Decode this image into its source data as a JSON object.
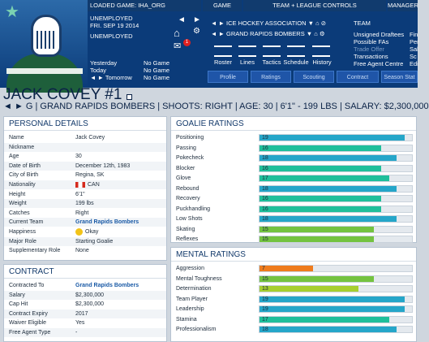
{
  "header": {
    "loaded_game_label": "LOADED GAME:",
    "loaded_game": "IHA_ORG",
    "team_status": "UNEMPLOYED",
    "date": "FRI. SEP 19 2014",
    "status2": "UNEMPLOYED",
    "game_tab": "GAME",
    "team_controls": "TEAM + LEAGUE CONTROLS",
    "manager_tab": "MANAGER",
    "schedule": [
      {
        "label": "Yesterday",
        "value": "No Game"
      },
      {
        "label": "Today",
        "value": "No Game"
      },
      {
        "label": "Tomorrow",
        "value": "No Game"
      }
    ],
    "leagues": [
      "ICE HOCKEY ASSOCIATION",
      "GRAND RAPIDS BOMBERS"
    ],
    "team_menu_title": "TEAM",
    "team_menu": [
      "Unsigned Draftees",
      "Possible FAs",
      "Trade Offer",
      "Transactions",
      "Free Agent Centre"
    ],
    "manager_menu": [
      "Fin",
      "Per",
      "Sal",
      "Sc",
      "Edi"
    ],
    "tools": [
      "Roster",
      "Lines",
      "Tactics",
      "Schedule",
      "History"
    ],
    "tabs": [
      "Profile",
      "Ratings",
      "Scouting",
      "Contract",
      "Season Stat"
    ],
    "notification_count": "1"
  },
  "player": {
    "name": "JACK COVEY #1",
    "summary": "◄ ► G | GRAND RAPIDS BOMBERS | SHOOTS: RIGHT | AGE: 30 | 6'1\" - 199 LBS | SALARY: $2,300,000"
  },
  "personal": {
    "title": "PERSONAL DETAILS",
    "rows": [
      {
        "k": "Name",
        "v": "Jack Covey"
      },
      {
        "k": "Nickname",
        "v": ""
      },
      {
        "k": "Age",
        "v": "30"
      },
      {
        "k": "Date of Birth",
        "v": "December 12th, 1983"
      },
      {
        "k": "City of Birth",
        "v": "Regina, SK"
      },
      {
        "k": "Nationality",
        "v": "CAN"
      },
      {
        "k": "Height",
        "v": "6'1\""
      },
      {
        "k": "Weight",
        "v": "199 lbs"
      },
      {
        "k": "Catches",
        "v": "Right"
      },
      {
        "k": "Current Team",
        "v": "Grand Rapids Bombers"
      },
      {
        "k": "Happiness",
        "v": "Okay"
      },
      {
        "k": "Major Role",
        "v": "Starting Goalie"
      },
      {
        "k": "Supplementary Role",
        "v": "None"
      }
    ]
  },
  "contract": {
    "title": "CONTRACT",
    "rows": [
      {
        "k": "Contracted To",
        "v": "Grand Rapids Bombers"
      },
      {
        "k": "Salary",
        "v": "$2,300,000"
      },
      {
        "k": "Cap Hit",
        "v": "$2,300,000"
      },
      {
        "k": "Contract Expiry",
        "v": "2017"
      },
      {
        "k": "Waiver Eligible",
        "v": "Yes"
      },
      {
        "k": "Free Agent Type",
        "v": "-"
      }
    ]
  },
  "goalie": {
    "title": "GOALIE RATINGS",
    "rows": [
      {
        "k": "Positioning",
        "v": 19,
        "c": "#25a6c9"
      },
      {
        "k": "Passing",
        "v": 16,
        "c": "#1fbf9b"
      },
      {
        "k": "Pokecheck",
        "v": 18,
        "c": "#25a6c9"
      },
      {
        "k": "Blocker",
        "v": 16,
        "c": "#1fbf9b"
      },
      {
        "k": "Glove",
        "v": 17,
        "c": "#1fbf9b"
      },
      {
        "k": "Rebound",
        "v": 18,
        "c": "#25a6c9"
      },
      {
        "k": "Recovery",
        "v": 16,
        "c": "#1fbf9b"
      },
      {
        "k": "Puckhandling",
        "v": 16,
        "c": "#1fbf9b"
      },
      {
        "k": "Low Shots",
        "v": 18,
        "c": "#25a6c9"
      },
      {
        "k": "Skating",
        "v": 15,
        "c": "#74c340"
      },
      {
        "k": "Reflexes",
        "v": 15,
        "c": "#74c340"
      }
    ]
  },
  "mental": {
    "title": "MENTAL RATINGS",
    "rows": [
      {
        "k": "Aggression",
        "v": 7,
        "c": "#ef7c1d"
      },
      {
        "k": "Mental Toughness",
        "v": 15,
        "c": "#74c340"
      },
      {
        "k": "Determination",
        "v": 13,
        "c": "#a7cf2f"
      },
      {
        "k": "Team Player",
        "v": 19,
        "c": "#25a6c9"
      },
      {
        "k": "Leadership",
        "v": 19,
        "c": "#25a6c9"
      },
      {
        "k": "Stamina",
        "v": 17,
        "c": "#1fbf9b"
      },
      {
        "k": "Professionalism",
        "v": 18,
        "c": "#25a6c9"
      }
    ]
  }
}
